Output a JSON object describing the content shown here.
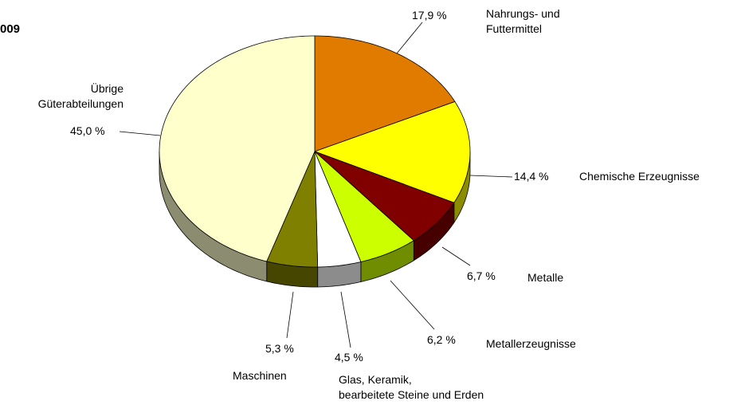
{
  "chart_data": {
    "type": "pie3d",
    "title": "009",
    "categories": [
      "Nahrungs- und\nFuttermittel",
      "Chemische Erzeugnisse",
      "Metalle",
      "Metallerzeugnisse",
      "Glas, Keramik,\nbearbeitete Steine und Erden",
      "Maschinen",
      "Übrige\nGüterabteilungen"
    ],
    "values": [
      17.9,
      14.4,
      6.7,
      6.2,
      4.5,
      5.3,
      45.0
    ],
    "value_labels": [
      "17,9 %",
      "14,4 %",
      "6,7 %",
      "6,2 %",
      "4,5 %",
      "5,3 %",
      "45,0 %"
    ],
    "colors": [
      "#E07B00",
      "#FFFF00",
      "#800000",
      "#CCFF00",
      "#FFFFFF",
      "#808000",
      "#FFFFCC"
    ]
  }
}
